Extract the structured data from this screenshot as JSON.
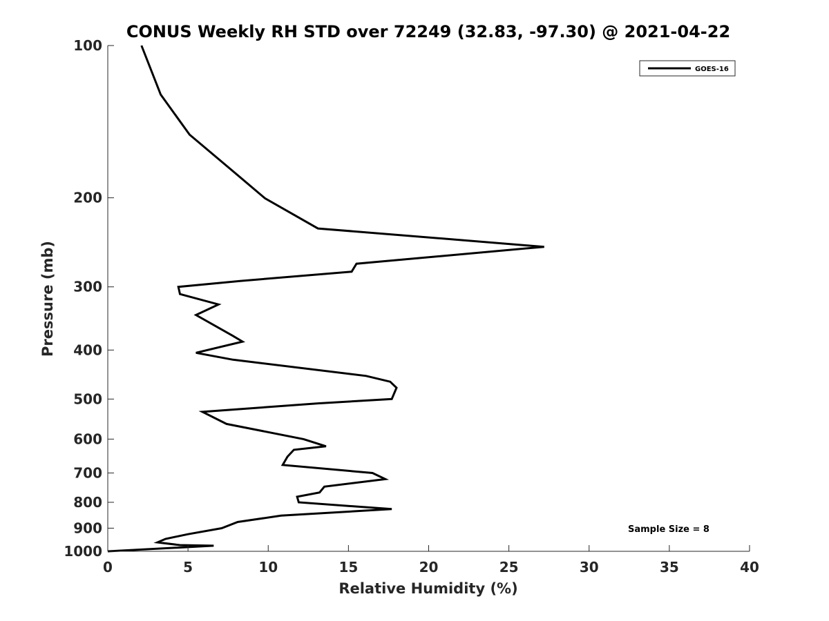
{
  "chart_data": {
    "type": "line",
    "title": "CONUS Weekly RH STD over 72249 (32.83, -97.30) @ 2021-04-22",
    "xlabel": "Relative Humidity (%)",
    "ylabel": "Pressure (mb)",
    "xlim": [
      0,
      40
    ],
    "ylim": [
      100,
      1000
    ],
    "yscale": "log",
    "y_reversed": true,
    "grid": false,
    "x_ticks": [
      0,
      5,
      10,
      15,
      20,
      25,
      30,
      35,
      40
    ],
    "x_tick_labels": [
      "0",
      "5",
      "10",
      "15",
      "20",
      "25",
      "30",
      "35",
      "40"
    ],
    "y_ticks": [
      100,
      200,
      300,
      400,
      500,
      600,
      700,
      800,
      900,
      1000
    ],
    "y_tick_labels": [
      "100",
      "200",
      "300",
      "400",
      "500",
      "600",
      "700",
      "800",
      "900",
      "1000"
    ],
    "legend": {
      "position": "top-right",
      "entries": [
        "GOES-16"
      ]
    },
    "annotation": "Sample Size = 8",
    "series": [
      {
        "name": "GOES-16",
        "color": "#000000",
        "points": [
          [
            2.1,
            100
          ],
          [
            3.3,
            125
          ],
          [
            5.1,
            150
          ],
          [
            7.6,
            175
          ],
          [
            9.8,
            200.5
          ],
          [
            13.1,
            230
          ],
          [
            27.2,
            250
          ],
          [
            15.5,
            270
          ],
          [
            15.2,
            280
          ],
          [
            8.3,
            292
          ],
          [
            4.4,
            300
          ],
          [
            4.5,
            310
          ],
          [
            6.9,
            325
          ],
          [
            5.5,
            341
          ],
          [
            7.8,
            375
          ],
          [
            8.4,
            385
          ],
          [
            5.5,
            405
          ],
          [
            7.8,
            418
          ],
          [
            16.1,
            450
          ],
          [
            17.6,
            462
          ],
          [
            18.0,
            475
          ],
          [
            17.7,
            500
          ],
          [
            13.1,
            510
          ],
          [
            5.9,
            530
          ],
          [
            7.4,
            560
          ],
          [
            12.2,
            600
          ],
          [
            13.6,
            620
          ],
          [
            11.6,
            630
          ],
          [
            11.2,
            650
          ],
          [
            10.9,
            675
          ],
          [
            16.5,
            700
          ],
          [
            17.3,
            720
          ],
          [
            13.5,
            745
          ],
          [
            13.2,
            765
          ],
          [
            11.8,
            780
          ],
          [
            11.9,
            800
          ],
          [
            17.7,
            825
          ],
          [
            10.8,
            850
          ],
          [
            8.1,
            875
          ],
          [
            7.1,
            900
          ],
          [
            5.0,
            925
          ],
          [
            3.6,
            945
          ],
          [
            3.1,
            960
          ],
          [
            4.5,
            972
          ],
          [
            6.6,
            975
          ],
          [
            0.0,
            1000
          ]
        ]
      }
    ]
  }
}
